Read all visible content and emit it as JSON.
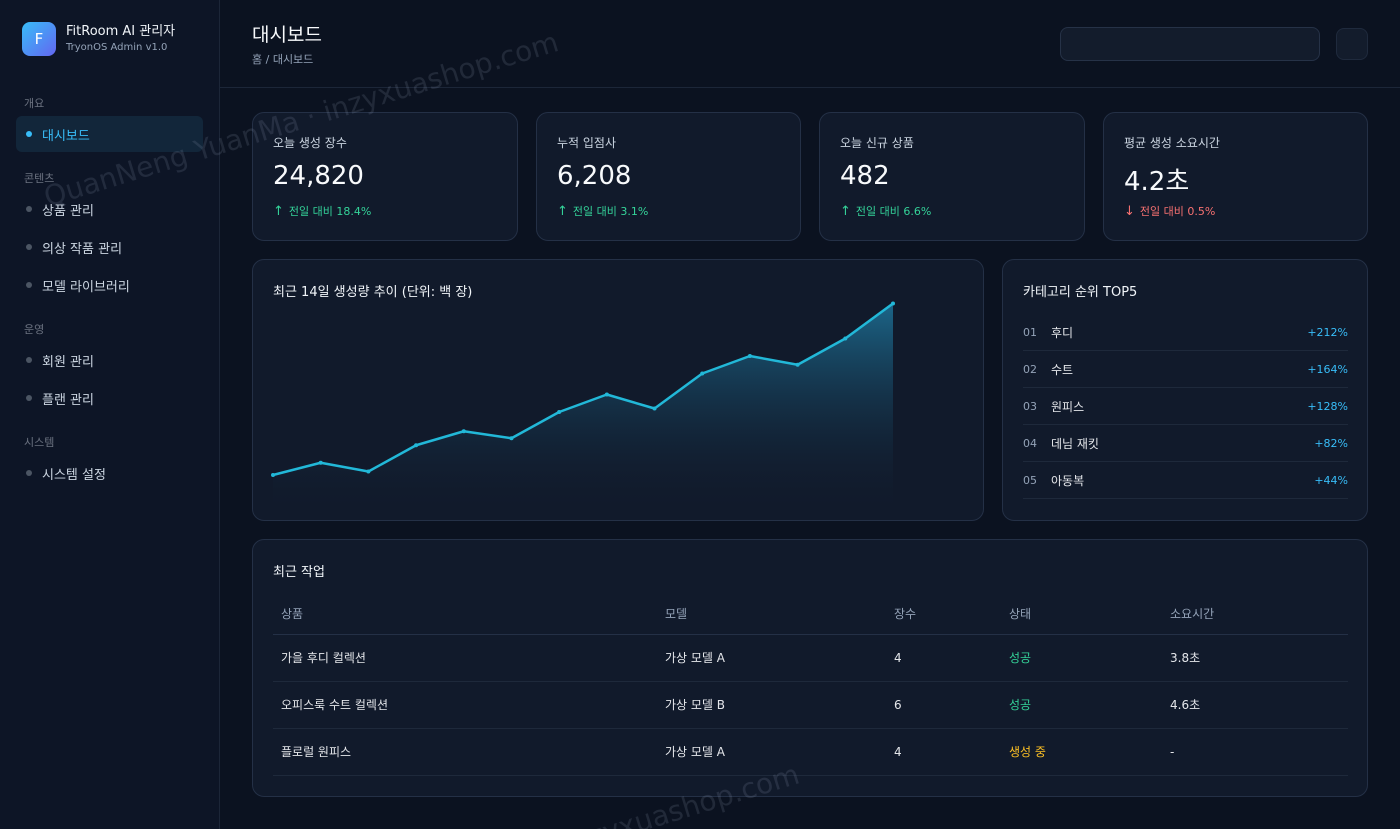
{
  "brand": {
    "logo_letter": "F",
    "name": "FitRoom AI 관리자",
    "subtitle": "TryonOS Admin v1.0"
  },
  "sidebar": {
    "sections": [
      {
        "title": "개요"
      },
      {
        "title": "콘텐츠"
      },
      {
        "title": "운영"
      },
      {
        "title": "시스템"
      }
    ],
    "items": [
      {
        "label": "대시보드",
        "active": true
      },
      {
        "label": "상품 관리"
      },
      {
        "label": "의상 작품 관리"
      },
      {
        "label": "모델 라이브러리"
      },
      {
        "label": "회원 관리"
      },
      {
        "label": "플랜 관리"
      },
      {
        "label": "시스템 설정"
      }
    ]
  },
  "header": {
    "title": "대시보드",
    "breadcrumb": "홈 / 대시보드",
    "search_value": ""
  },
  "stats": [
    {
      "label": "오늘 생성 장수",
      "value": "24,820",
      "delta": "전일 대비 18.4%",
      "direction": "up"
    },
    {
      "label": "누적 입점사",
      "value": "6,208",
      "delta": "전일 대비 3.1%",
      "direction": "up"
    },
    {
      "label": "오늘 신규 상품",
      "value": "482",
      "delta": "전일 대비 6.6%",
      "direction": "up"
    },
    {
      "label": "평균 생성 소요시간",
      "value": "4.2초",
      "delta": "전일 대비 0.5%",
      "direction": "down"
    }
  ],
  "arrows": {
    "up": "↑",
    "down": "↓"
  },
  "chart_data": {
    "type": "area",
    "title": "최근 14일 생성량 추이 (단위: 백 장)",
    "x": [
      1,
      2,
      3,
      4,
      5,
      6,
      7,
      8,
      9,
      10,
      11,
      12,
      13,
      14
    ],
    "values": [
      20,
      27,
      22,
      37,
      45,
      41,
      56,
      66,
      58,
      78,
      88,
      83,
      98,
      118
    ],
    "ylim": [
      0,
      120
    ],
    "line_color": "#22b8d8",
    "grid": false,
    "legend": "none"
  },
  "ranking": {
    "title": "카테고리 순위 TOP5",
    "items": [
      {
        "no": "01",
        "name": "후디",
        "pct": "+212%"
      },
      {
        "no": "02",
        "name": "수트",
        "pct": "+164%"
      },
      {
        "no": "03",
        "name": "원피스",
        "pct": "+128%"
      },
      {
        "no": "04",
        "name": "데님 재킷",
        "pct": "+82%"
      },
      {
        "no": "05",
        "name": "아동복",
        "pct": "+44%"
      }
    ]
  },
  "recent": {
    "title": "최근 작업",
    "columns": [
      "상품",
      "모델",
      "장수",
      "상태",
      "소요시간"
    ],
    "rows": [
      {
        "product": "가을 후디 컬렉션",
        "model": "가상 모델 A",
        "count": "4",
        "status": "성공",
        "status_type": "ok",
        "time": "3.8초"
      },
      {
        "product": "오피스룩 수트 컬렉션",
        "model": "가상 모델 B",
        "count": "6",
        "status": "성공",
        "status_type": "ok",
        "time": "4.6초"
      },
      {
        "product": "플로럴 원피스",
        "model": "가상 모델 A",
        "count": "4",
        "status": "생성 중",
        "status_type": "run",
        "time": "-"
      }
    ]
  },
  "watermark": {
    "text1": "QuanNeng YuanMa · inzyxuashop.com",
    "text2": "inzyxuashop.com"
  },
  "colors": {
    "accent": "#38bdf8",
    "up": "#34d399",
    "down": "#f87171",
    "running": "#fbbf24"
  }
}
